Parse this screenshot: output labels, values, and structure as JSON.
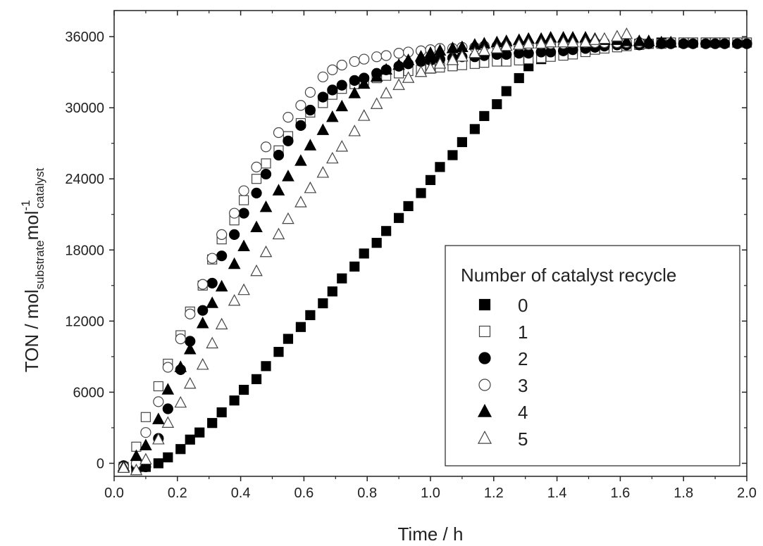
{
  "chart_data": {
    "type": "scatter",
    "title": "",
    "xlabel": "Time / h",
    "ylabel_parts": {
      "main": "TON / mol",
      "sub1": "substrate",
      "mid": "mol",
      "sup": "-1",
      "sub2": "catalyst"
    },
    "xlim": [
      0.0,
      2.0
    ],
    "ylim": [
      -1100,
      38200
    ],
    "x_ticks": [
      0.0,
      0.2,
      0.4,
      0.6,
      0.8,
      1.0,
      1.2,
      1.4,
      1.6,
      1.8,
      2.0
    ],
    "x_tick_labels": [
      "0.0",
      "0.2",
      "0.4",
      "0.6",
      "0.8",
      "1.0",
      "1.2",
      "1.4",
      "1.6",
      "1.8",
      "2.0"
    ],
    "y_ticks": [
      0,
      6000,
      12000,
      18000,
      24000,
      30000,
      36000
    ],
    "y_tick_labels": [
      "0",
      "6000",
      "12000",
      "18000",
      "24000",
      "30000",
      "36000"
    ],
    "grid": false,
    "legend": {
      "title": "Number of catalyst recycle",
      "position": "right",
      "entries": [
        "0",
        "1",
        "2",
        "3",
        "4",
        "5"
      ]
    },
    "series": [
      {
        "name": "0",
        "marker": "square",
        "filled": true,
        "x": [
          0.07,
          0.1,
          0.14,
          0.17,
          0.21,
          0.24,
          0.27,
          0.31,
          0.34,
          0.38,
          0.41,
          0.45,
          0.48,
          0.52,
          0.55,
          0.59,
          0.62,
          0.66,
          0.69,
          0.72,
          0.76,
          0.79,
          0.83,
          0.86,
          0.9,
          0.93,
          0.97,
          1.0,
          1.03,
          1.07,
          1.1,
          1.14,
          1.17,
          1.21,
          1.24,
          1.28,
          1.31,
          1.35,
          1.38,
          1.42,
          1.45,
          1.49,
          1.52,
          1.55,
          1.59,
          1.62,
          1.66,
          1.69,
          1.73,
          1.76,
          1.8,
          1.83,
          1.87,
          1.9,
          1.93,
          1.97,
          2.0
        ],
        "y": [
          -500,
          -300,
          0,
          500,
          1200,
          2000,
          2600,
          3400,
          4300,
          5300,
          6200,
          7100,
          8200,
          9400,
          10500,
          11500,
          12500,
          13500,
          14500,
          15600,
          16600,
          17700,
          18600,
          19600,
          20700,
          21700,
          22800,
          23900,
          25000,
          26000,
          27100,
          28200,
          29300,
          30300,
          31400,
          32500,
          33500,
          34100,
          34400,
          34600,
          34800,
          35000,
          35100,
          35200,
          35300,
          35300,
          35400,
          35400,
          35500,
          35500,
          35500,
          35500,
          35500,
          35500,
          35500,
          35500,
          35500
        ]
      },
      {
        "name": "1",
        "marker": "square",
        "filled": false,
        "x": [
          0.03,
          0.07,
          0.1,
          0.14,
          0.17,
          0.21,
          0.24,
          0.28,
          0.31,
          0.34,
          0.38,
          0.41,
          0.45,
          0.48,
          0.52,
          0.55,
          0.59,
          0.62,
          0.66,
          0.69,
          0.72,
          0.76,
          0.79,
          0.83,
          0.86,
          0.9,
          0.93,
          0.97,
          1.0,
          1.03,
          1.07,
          1.1,
          1.14,
          1.17,
          1.21,
          1.24,
          1.28,
          1.31,
          1.35,
          1.38,
          1.42,
          1.45,
          1.49,
          1.52,
          1.55,
          1.59,
          1.62,
          1.66,
          1.69,
          1.73,
          1.76,
          1.8,
          1.83,
          1.87,
          1.9,
          1.93,
          1.97,
          2.0
        ],
        "y": [
          -300,
          1400,
          3900,
          6500,
          8400,
          10800,
          12800,
          15000,
          17200,
          18900,
          20500,
          22200,
          24000,
          25300,
          26400,
          27600,
          28700,
          29600,
          30400,
          31100,
          31600,
          32000,
          32300,
          32500,
          32700,
          32900,
          33100,
          33200,
          33300,
          33400,
          33500,
          33600,
          33700,
          33800,
          33900,
          33900,
          34000,
          34100,
          34200,
          34300,
          34400,
          34500,
          34700,
          34900,
          35000,
          35100,
          35200,
          35300,
          35400,
          35400,
          35500,
          35500,
          35500,
          35500,
          35500,
          35500,
          35500,
          35500
        ]
      },
      {
        "name": "2",
        "marker": "circle",
        "filled": true,
        "x": [
          0.03,
          0.07,
          0.1,
          0.14,
          0.17,
          0.21,
          0.24,
          0.28,
          0.31,
          0.34,
          0.38,
          0.41,
          0.45,
          0.48,
          0.52,
          0.55,
          0.59,
          0.62,
          0.66,
          0.69,
          0.72,
          0.76,
          0.79,
          0.83,
          0.86,
          0.9,
          0.93,
          0.97,
          1.0,
          1.03,
          1.07,
          1.1,
          1.14,
          1.17,
          1.21,
          1.24,
          1.28,
          1.31,
          1.35,
          1.38,
          1.42,
          1.45,
          1.49,
          1.52,
          1.55,
          1.59,
          1.62,
          1.66,
          1.69,
          1.73,
          1.76,
          1.8,
          1.83,
          1.87,
          1.9,
          1.93,
          1.97,
          2.0
        ],
        "y": [
          -200,
          -300,
          -300,
          2100,
          4600,
          7900,
          10300,
          12900,
          15200,
          17500,
          19300,
          21100,
          22800,
          24400,
          26000,
          27200,
          28500,
          29800,
          30900,
          31500,
          31900,
          32300,
          32500,
          32900,
          33200,
          33500,
          33700,
          33900,
          34000,
          34100,
          34200,
          34300,
          34300,
          34400,
          34500,
          34500,
          34600,
          34600,
          34700,
          34700,
          34800,
          34900,
          35000,
          35100,
          35200,
          35300,
          35300,
          35300,
          35400,
          35400,
          35400,
          35400,
          35400,
          35400,
          35400,
          35400,
          35400,
          35400
        ]
      },
      {
        "name": "3",
        "marker": "circle",
        "filled": false,
        "x": [
          0.03,
          0.07,
          0.1,
          0.14,
          0.17,
          0.21,
          0.24,
          0.28,
          0.31,
          0.34,
          0.38,
          0.41,
          0.45,
          0.48,
          0.52,
          0.55,
          0.59,
          0.62,
          0.66,
          0.69,
          0.72,
          0.76,
          0.79,
          0.83,
          0.86,
          0.9,
          0.93,
          0.97,
          1.0,
          1.03,
          1.07,
          1.1,
          1.14,
          1.17,
          1.21,
          1.24,
          1.28,
          1.31,
          1.35,
          1.38,
          1.42,
          1.45,
          1.49,
          1.52,
          1.55,
          1.59,
          1.62,
          1.66
        ],
        "y": [
          -300,
          0,
          2600,
          5200,
          8100,
          10500,
          12600,
          15100,
          17300,
          19300,
          21100,
          23000,
          25000,
          26700,
          27900,
          29200,
          30200,
          31300,
          32600,
          33200,
          33600,
          33900,
          34100,
          34300,
          34400,
          34600,
          34700,
          34800,
          34900,
          35000,
          35000,
          35100,
          35100,
          35200,
          35200,
          35300,
          35300,
          35300,
          35400,
          35400,
          35400,
          35500,
          35500,
          35500,
          35500,
          35500,
          35500,
          35500
        ]
      },
      {
        "name": "4",
        "marker": "triangle",
        "filled": true,
        "x": [
          0.03,
          0.07,
          0.1,
          0.14,
          0.17,
          0.21,
          0.24,
          0.28,
          0.31,
          0.34,
          0.38,
          0.41,
          0.45,
          0.48,
          0.52,
          0.55,
          0.59,
          0.62,
          0.66,
          0.69,
          0.72,
          0.76,
          0.79,
          0.83,
          0.86,
          0.9,
          0.93,
          0.97,
          1.0,
          1.03,
          1.07,
          1.1,
          1.14,
          1.17,
          1.21,
          1.24,
          1.28,
          1.31,
          1.35,
          1.38,
          1.42,
          1.45,
          1.49,
          1.52,
          1.55,
          1.59,
          1.62,
          1.66,
          1.69,
          1.73,
          1.76
        ],
        "y": [
          -300,
          600,
          1500,
          3700,
          6200,
          8100,
          9600,
          11800,
          13500,
          14900,
          16800,
          18300,
          19900,
          21600,
          23000,
          24200,
          25500,
          26800,
          28100,
          29200,
          30100,
          31200,
          32000,
          32600,
          33200,
          33600,
          34000,
          34300,
          34600,
          34800,
          35000,
          35100,
          35300,
          35400,
          35500,
          35600,
          35700,
          35800,
          35800,
          35900,
          35900,
          35900,
          35900,
          35800,
          35700,
          35700,
          35600,
          35600,
          35600,
          35500,
          35500
        ]
      },
      {
        "name": "5",
        "marker": "triangle",
        "filled": false,
        "x": [
          0.03,
          0.07,
          0.1,
          0.14,
          0.17,
          0.21,
          0.24,
          0.28,
          0.31,
          0.34,
          0.38,
          0.41,
          0.45,
          0.48,
          0.52,
          0.55,
          0.59,
          0.62,
          0.66,
          0.69,
          0.72,
          0.76,
          0.79,
          0.83,
          0.86,
          0.9,
          0.93,
          0.97,
          1.0,
          1.03,
          1.07,
          1.1,
          1.14,
          1.17,
          1.21,
          1.24,
          1.28,
          1.31,
          1.35,
          1.38,
          1.42,
          1.45,
          1.49,
          1.52,
          1.55,
          1.59,
          1.62
        ],
        "y": [
          -400,
          -600,
          300,
          2000,
          3400,
          5100,
          6700,
          8300,
          10100,
          11700,
          13700,
          14600,
          16200,
          17800,
          19300,
          20600,
          22000,
          23200,
          24500,
          25700,
          26700,
          28000,
          29300,
          30300,
          31200,
          31900,
          32500,
          33000,
          33300,
          33700,
          34000,
          34300,
          34600,
          34800,
          35000,
          35200,
          35300,
          35400,
          35400,
          35500,
          35500,
          35500,
          35500,
          35700,
          35800,
          36000,
          36200
        ]
      }
    ]
  }
}
